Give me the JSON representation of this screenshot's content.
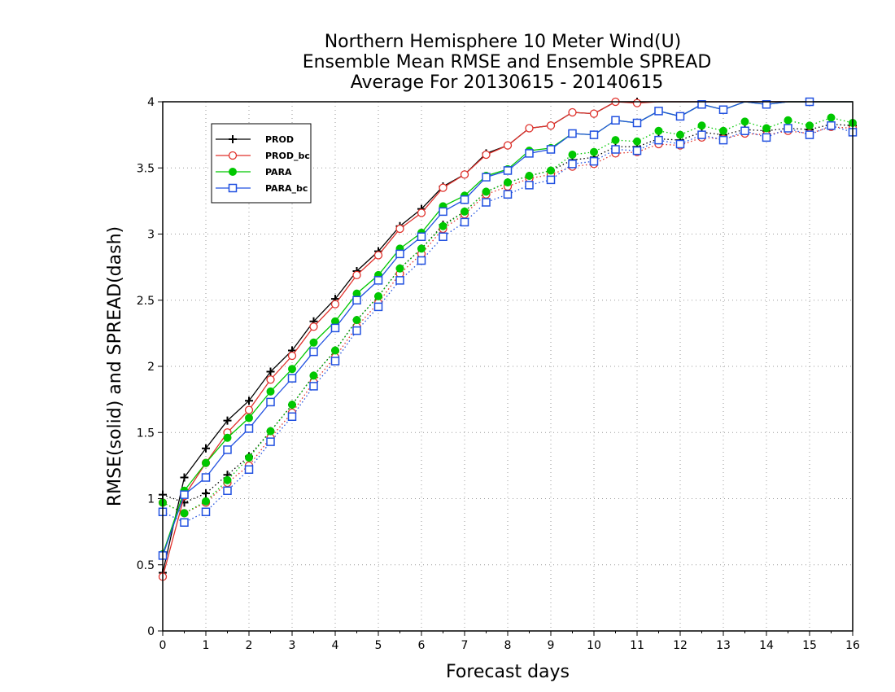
{
  "chart_data": {
    "type": "line",
    "title": [
      "Northern Hemisphere 10 Meter Wind(U)",
      "Ensemble Mean RMSE and Ensemble SPREAD",
      "Average For 20130615 - 20140615"
    ],
    "xlabel": "Forecast days",
    "ylabel": "RMSE(solid) and SPREAD(dash)",
    "xlim": [
      0,
      16
    ],
    "ylim": [
      0,
      4
    ],
    "xticks": [
      "0",
      "1",
      "2",
      "3",
      "4",
      "5",
      "6",
      "7",
      "8",
      "9",
      "10",
      "11",
      "12",
      "13",
      "14",
      "15",
      "16"
    ],
    "yticks": [
      "0",
      "0.5",
      "1",
      "1.5",
      "2",
      "2.5",
      "3",
      "3.5",
      "4"
    ],
    "grid": true,
    "legend_position": "top-left",
    "x": [
      0,
      0.5,
      1,
      1.5,
      2,
      2.5,
      3,
      3.5,
      4,
      4.5,
      5,
      5.5,
      6,
      6.5,
      7,
      7.5,
      8,
      8.5,
      9,
      9.5,
      10,
      10.5,
      11,
      11.5,
      12,
      12.5,
      13,
      13.5,
      14,
      14.5,
      15,
      15.5,
      16
    ],
    "series": [
      {
        "name": "PROD",
        "kind": "rmse",
        "color": "#000000",
        "marker": "plus",
        "values": [
          0.44,
          1.16,
          1.38,
          1.59,
          1.74,
          1.96,
          2.12,
          2.34,
          2.51,
          2.72,
          2.87,
          3.06,
          3.19,
          3.36,
          3.45,
          3.61,
          3.67,
          3.8,
          3.82,
          3.92,
          3.91,
          4.0,
          4.0,
          4.02,
          4.02,
          4.02,
          4.02,
          4.02,
          4.02,
          4.02,
          4.02,
          4.02,
          4.02
        ]
      },
      {
        "name": "PROD_bc",
        "kind": "rmse",
        "color": "#e0302a",
        "marker": "circle-open",
        "values": [
          0.41,
          1.02,
          1.27,
          1.5,
          1.67,
          1.9,
          2.08,
          2.3,
          2.47,
          2.69,
          2.84,
          3.04,
          3.16,
          3.35,
          3.45,
          3.6,
          3.67,
          3.8,
          3.82,
          3.92,
          3.91,
          4.0,
          3.99,
          4.02,
          4.02,
          4.02,
          4.02,
          4.02,
          4.02,
          4.02,
          4.02,
          4.02,
          4.02
        ]
      },
      {
        "name": "PARA",
        "kind": "rmse",
        "color": "#00c800",
        "marker": "circle-filled",
        "values": [
          0.58,
          1.06,
          1.27,
          1.46,
          1.61,
          1.81,
          1.98,
          2.18,
          2.34,
          2.55,
          2.69,
          2.89,
          3.01,
          3.21,
          3.29,
          3.44,
          3.49,
          3.63,
          3.65,
          3.76,
          3.75,
          3.86,
          3.84,
          3.93,
          3.89,
          3.98,
          3.94,
          4.01,
          3.98,
          4.01,
          4.01,
          4.02,
          4.02
        ]
      },
      {
        "name": "PARA_bc",
        "kind": "rmse",
        "color": "#2050e0",
        "marker": "square-open",
        "values": [
          0.57,
          1.03,
          1.16,
          1.37,
          1.53,
          1.73,
          1.91,
          2.11,
          2.29,
          2.5,
          2.65,
          2.85,
          2.98,
          3.17,
          3.26,
          3.43,
          3.48,
          3.61,
          3.64,
          3.76,
          3.75,
          3.86,
          3.84,
          3.93,
          3.89,
          3.98,
          3.94,
          4.01,
          3.98,
          4.01,
          4.0,
          4.02,
          4.02
        ]
      },
      {
        "name": "PROD",
        "kind": "spread",
        "color": "#000000",
        "marker": "plus",
        "values": [
          1.03,
          0.97,
          1.04,
          1.18,
          1.32,
          1.51,
          1.71,
          1.93,
          2.12,
          2.35,
          2.53,
          2.74,
          2.89,
          3.07,
          3.17,
          3.32,
          3.39,
          3.44,
          3.48,
          3.56,
          3.58,
          3.66,
          3.66,
          3.72,
          3.71,
          3.77,
          3.75,
          3.79,
          3.78,
          3.8,
          3.79,
          3.83,
          3.82
        ]
      },
      {
        "name": "PROD_bc",
        "kind": "spread",
        "color": "#e0302a",
        "marker": "circle-open",
        "values": [
          0.97,
          0.89,
          0.97,
          1.12,
          1.25,
          1.46,
          1.65,
          1.88,
          2.07,
          2.3,
          2.48,
          2.7,
          2.85,
          3.04,
          3.15,
          3.3,
          3.36,
          3.42,
          3.45,
          3.51,
          3.53,
          3.61,
          3.62,
          3.68,
          3.67,
          3.73,
          3.72,
          3.76,
          3.75,
          3.78,
          3.76,
          3.81,
          3.8
        ]
      },
      {
        "name": "PARA",
        "kind": "spread",
        "color": "#00c800",
        "marker": "circle-filled",
        "values": [
          0.97,
          0.89,
          0.98,
          1.14,
          1.31,
          1.51,
          1.71,
          1.93,
          2.12,
          2.35,
          2.53,
          2.74,
          2.89,
          3.06,
          3.17,
          3.32,
          3.39,
          3.44,
          3.48,
          3.6,
          3.62,
          3.71,
          3.7,
          3.78,
          3.75,
          3.82,
          3.78,
          3.85,
          3.8,
          3.86,
          3.82,
          3.88,
          3.84
        ]
      },
      {
        "name": "PARA_bc",
        "kind": "spread",
        "color": "#2050e0",
        "marker": "square-open",
        "values": [
          0.9,
          0.82,
          0.9,
          1.06,
          1.22,
          1.43,
          1.62,
          1.85,
          2.04,
          2.27,
          2.45,
          2.65,
          2.8,
          2.98,
          3.09,
          3.24,
          3.3,
          3.37,
          3.41,
          3.53,
          3.55,
          3.64,
          3.63,
          3.71,
          3.68,
          3.75,
          3.71,
          3.78,
          3.73,
          3.8,
          3.75,
          3.82,
          3.77
        ]
      }
    ]
  }
}
